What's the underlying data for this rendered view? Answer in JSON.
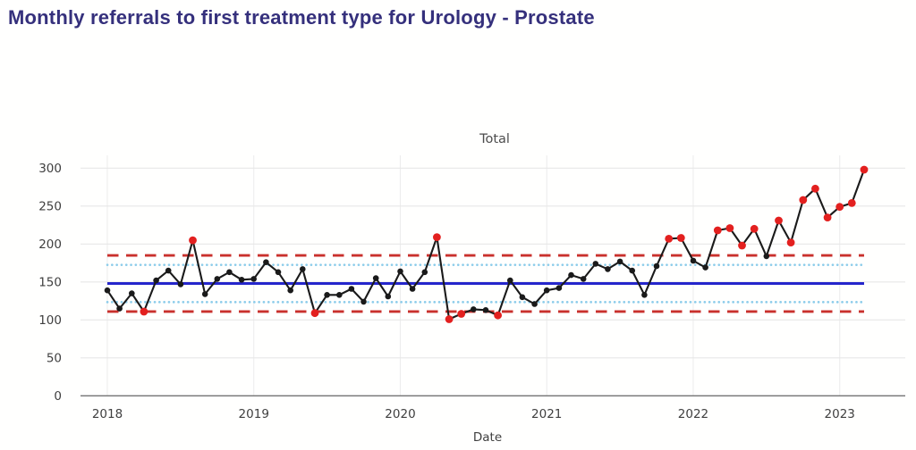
{
  "page": {
    "title": "Monthly referrals to first treatment type for Urology - Prostate"
  },
  "chart_data": {
    "type": "line",
    "title": "Total",
    "xlabel": "Date",
    "ylabel": "",
    "x_unit": "month",
    "x_start": "2018-01",
    "x_tick_labels": [
      "2018",
      "2019",
      "2020",
      "2021",
      "2022",
      "2023"
    ],
    "y_ticks": [
      0,
      50,
      100,
      150,
      200,
      250,
      300
    ],
    "ylim": [
      0,
      316
    ],
    "grid": true,
    "legend": "none",
    "series": [
      {
        "name": "Total",
        "values": [
          139,
          115,
          135,
          111,
          152,
          165,
          147,
          205,
          134,
          154,
          163,
          153,
          154,
          176,
          163,
          139,
          167,
          109,
          133,
          133,
          141,
          124,
          155,
          131,
          164,
          141,
          163,
          209,
          101,
          108,
          114,
          113,
          106,
          152,
          130,
          121,
          139,
          142,
          159,
          154,
          174,
          167,
          177,
          165,
          133,
          171,
          207,
          208,
          178,
          169,
          218,
          221,
          198,
          220,
          184,
          231,
          202,
          258,
          273,
          235,
          249,
          254,
          298
        ]
      }
    ],
    "special_cause_indices": [
      3,
      7,
      17,
      27,
      28,
      29,
      32,
      46,
      47,
      50,
      51,
      52,
      53,
      55,
      56,
      57,
      58,
      59,
      60,
      61,
      62
    ],
    "spc_limits": {
      "mean": 148,
      "ucl": 185,
      "lcl": 111,
      "upper_warning": 172.5,
      "lower_warning": 123.5
    },
    "colors": {
      "title": "#35307c",
      "mean_line": "#2526cb",
      "limit_line": "#c9302c",
      "warning_line": "#8cccea",
      "data_line": "#1a1a1a",
      "point": "#1a1a1a",
      "special_point": "#e3201f",
      "grid": "#e7e7e7",
      "axis": "#737373",
      "tick_label": "#3f3f3f",
      "subtitle": "#4d4d4d"
    }
  }
}
